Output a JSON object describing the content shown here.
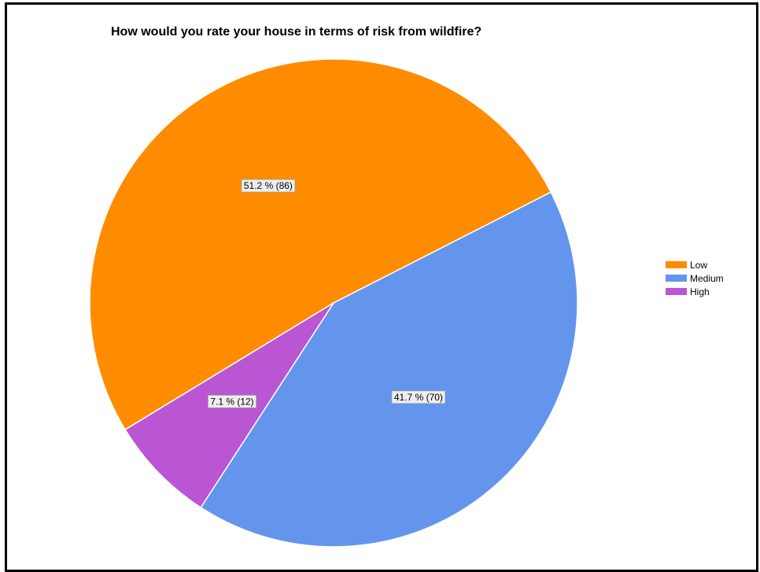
{
  "chart_data": {
    "type": "pie",
    "title": "How would you rate your house in terms of risk from wildfire?",
    "slices": [
      {
        "name": "Low",
        "value": 86,
        "percent": 51.2,
        "label": "51.2 % (86)",
        "color": "#FF8C00"
      },
      {
        "name": "Medium",
        "value": 70,
        "percent": 41.7,
        "label": "41.7 % (70)",
        "color": "#6495ED"
      },
      {
        "name": "High",
        "value": 12,
        "percent": 7.1,
        "label": "7.1 % (12)",
        "color": "#BA55D3"
      }
    ],
    "legend_position": "right"
  }
}
